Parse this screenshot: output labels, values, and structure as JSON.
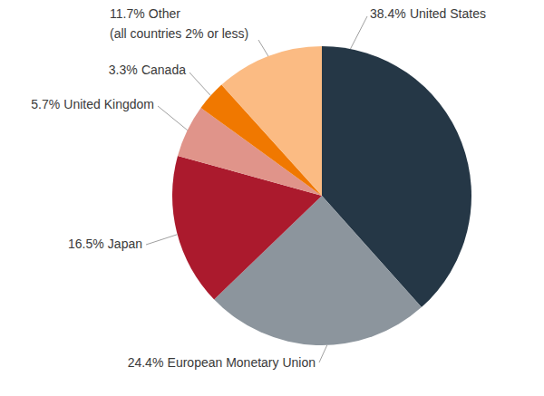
{
  "chart_data": {
    "type": "pie",
    "categories": [
      "United States",
      "European Monetary Union",
      "Japan",
      "United Kingdom",
      "Canada",
      "Other"
    ],
    "values": [
      38.4,
      24.4,
      16.5,
      5.7,
      3.3,
      11.7
    ],
    "value_labels": [
      "38.4%",
      "24.4%",
      "16.5%",
      "5.7%",
      "3.3%",
      "11.7%"
    ],
    "colors": [
      "#253746",
      "#8c959d",
      "#ab1a2d",
      "#e0948a",
      "#f07800",
      "#fbbb83"
    ],
    "annotations": [
      "(all countries 2% or less)"
    ],
    "data_labels": true
  }
}
